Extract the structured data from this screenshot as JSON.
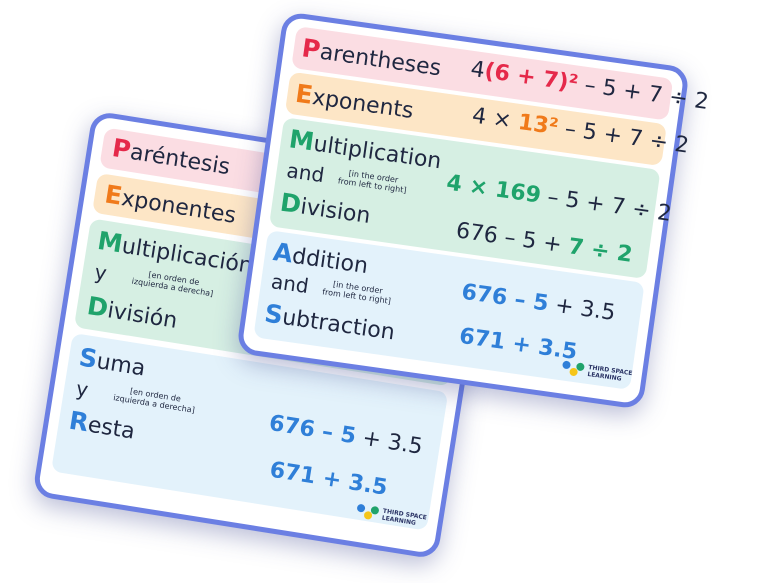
{
  "spanish_card": {
    "p_initial": "P",
    "p_rest": "aréntesis",
    "e_initial": "E",
    "e_rest": "xponentes",
    "m_initial": "M",
    "m_rest": "ultiplicación",
    "m_and": "y",
    "m_note_1": "[en orden de",
    "m_note_2": "izquierda a derecha]",
    "d_initial": "D",
    "d_rest": "ivisión",
    "s_initial": "S",
    "s_rest": "uma",
    "s_and": "y",
    "s_note_1": "[en orden de",
    "s_note_2": "izquierda a derecha]",
    "r_initial": "R",
    "r_rest": "esta",
    "step5_bold": "676 – 5",
    "step5_rest": " + 3.5",
    "step6": "671 + 3.5",
    "logo_line1": "THIRD SPACE",
    "logo_line2": "LEARNING"
  },
  "english_card": {
    "p_initial": "P",
    "p_rest": "arentheses",
    "e_initial": "E",
    "e_rest": "xponents",
    "m_initial": "M",
    "m_rest": "ultiplication",
    "m_and": "and",
    "m_note_1": "[in the order",
    "m_note_2": "from left to right]",
    "d_initial": "D",
    "d_rest": "ivision",
    "a_initial": "A",
    "a_rest": "ddition",
    "a_and": "and",
    "a_note_1": "[in the order",
    "a_note_2": "from left to right]",
    "s_initial": "S",
    "s_rest": "ubtraction",
    "step1_a": "4",
    "step1_bold": "(6 + 7)²",
    "step1_rest": " – 5 + 7 ÷ 2",
    "step2_a": "4 × ",
    "step2_bold": "13²",
    "step2_rest": " – 5 + 7 ÷ 2",
    "step3_bold": "4 × 169",
    "step3_rest": " – 5 + 7 ÷ 2",
    "step4_a": "676 – 5 + ",
    "step4_bold": "7 ÷ 2",
    "step5_bold": "676 – 5",
    "step5_rest": " + 3.5",
    "step6": "671 + 3.5",
    "logo_line1": "THIRD SPACE",
    "logo_line2": "LEARNING"
  },
  "colors": {
    "pink": "#fbdde3",
    "orange": "#fde6c6",
    "green": "#d6efe3",
    "blue": "#e3f2fb",
    "border": "#6b7fe3"
  }
}
